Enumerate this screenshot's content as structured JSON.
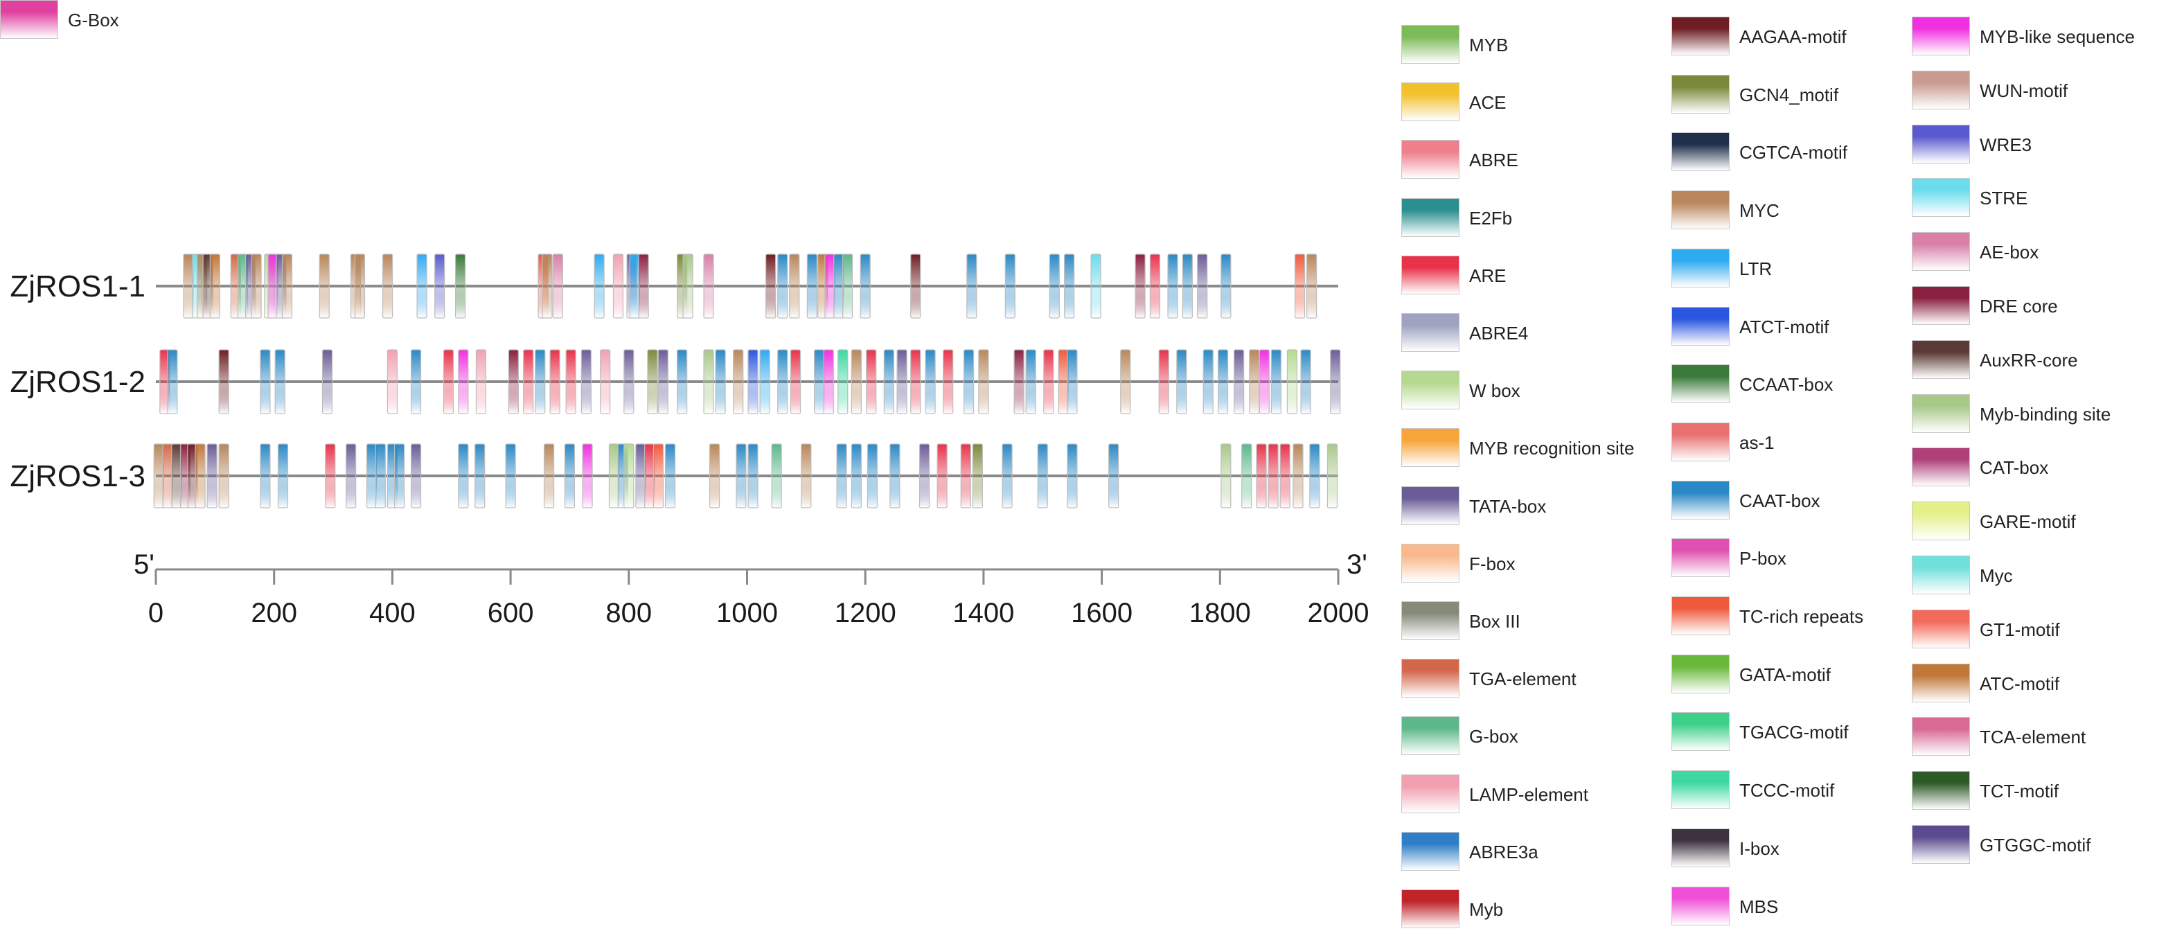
{
  "chart_data": {
    "type": "promoter-element-map",
    "axis": {
      "min": 0,
      "max": 2000,
      "ticks": [
        "0",
        "200",
        "400",
        "600",
        "800",
        "1000",
        "1200",
        "1400",
        "1600",
        "1800",
        "2000"
      ],
      "tick_values": [
        0,
        200,
        400,
        600,
        800,
        1000,
        1200,
        1400,
        1600,
        1800,
        2000
      ],
      "start_label": "5'",
      "end_label": "3'"
    },
    "genes": [
      {
        "name": "ZjROS1-1",
        "elements": [
          [
            55,
            "Myc"
          ],
          [
            70,
            "STRE"
          ],
          [
            78,
            "MYC"
          ],
          [
            88,
            "AuxRR-core"
          ],
          [
            100,
            "ATC-motif"
          ],
          [
            135,
            "TGA-element"
          ],
          [
            147,
            "G-box"
          ],
          [
            160,
            "TATA-box"
          ],
          [
            170,
            "MYC"
          ],
          [
            192,
            "W box"
          ],
          [
            198,
            "MYB-like sequence"
          ],
          [
            212,
            "TATA-box"
          ],
          [
            222,
            "MYC"
          ],
          [
            285,
            "MYC"
          ],
          [
            338,
            "MYC"
          ],
          [
            345,
            "MYC"
          ],
          [
            392,
            "MYC"
          ],
          [
            450,
            "LTR"
          ],
          [
            480,
            "WRE3"
          ],
          [
            515,
            "CCAAT-box"
          ],
          [
            655,
            "TC-rich repeats"
          ],
          [
            662,
            "MYC"
          ],
          [
            680,
            "AE-box"
          ],
          [
            750,
            "LTR"
          ],
          [
            782,
            "LAMP-element"
          ],
          [
            805,
            "TATA-box"
          ],
          [
            810,
            "LTR"
          ],
          [
            825,
            "DRE core"
          ],
          [
            890,
            "GCN4_motif"
          ],
          [
            900,
            "Myb-binding site"
          ],
          [
            935,
            "AE-box"
          ],
          [
            1040,
            "AAGAA-motif"
          ],
          [
            1060,
            "CAAT-box"
          ],
          [
            1080,
            "MYC"
          ],
          [
            1110,
            "CAAT-box"
          ],
          [
            1128,
            "ATC-motif"
          ],
          [
            1140,
            "MYB-like sequence"
          ],
          [
            1155,
            "CAAT-box"
          ],
          [
            1170,
            "G-box"
          ],
          [
            1200,
            "CAAT-box"
          ],
          [
            1285,
            "AAGAA-motif"
          ],
          [
            1380,
            "CAAT-box"
          ],
          [
            1445,
            "CAAT-box"
          ],
          [
            1520,
            "CAAT-box"
          ],
          [
            1545,
            "CAAT-box"
          ],
          [
            1590,
            "STRE"
          ],
          [
            1665,
            "DRE core"
          ],
          [
            1690,
            "ARE"
          ],
          [
            1720,
            "CAAT-box"
          ],
          [
            1745,
            "CAAT-box"
          ],
          [
            1770,
            "TATA-box"
          ],
          [
            1810,
            "CAAT-box"
          ],
          [
            1935,
            "TC-rich repeats"
          ],
          [
            1955,
            "Myc"
          ]
        ]
      },
      {
        "name": "ZjROS1-2",
        "elements": [
          [
            15,
            "ARE"
          ],
          [
            28,
            "CAAT-box"
          ],
          [
            115,
            "AAGAA-motif"
          ],
          [
            185,
            "CAAT-box"
          ],
          [
            210,
            "CAAT-box"
          ],
          [
            290,
            "TATA-box"
          ],
          [
            400,
            "LAMP-element"
          ],
          [
            440,
            "CAAT-box"
          ],
          [
            495,
            "ARE"
          ],
          [
            520,
            "MYB-like sequence"
          ],
          [
            550,
            "LAMP-element"
          ],
          [
            605,
            "DRE core"
          ],
          [
            630,
            "ARE"
          ],
          [
            650,
            "CAAT-box"
          ],
          [
            675,
            "ARE"
          ],
          [
            702,
            "ARE"
          ],
          [
            728,
            "TATA-box"
          ],
          [
            760,
            "LAMP-element"
          ],
          [
            800,
            "TATA-box"
          ],
          [
            840,
            "GCN4_motif"
          ],
          [
            858,
            "TATA-box"
          ],
          [
            890,
            "CAAT-box"
          ],
          [
            935,
            "Myb-binding site"
          ],
          [
            955,
            "CAAT-box"
          ],
          [
            985,
            "MYC"
          ],
          [
            1010,
            "ATCT-motif"
          ],
          [
            1030,
            "LTR"
          ],
          [
            1060,
            "CAAT-box"
          ],
          [
            1082,
            "ARE"
          ],
          [
            1122,
            "CAAT-box"
          ],
          [
            1138,
            "MYB-like sequence"
          ],
          [
            1162,
            "TCCC-motif"
          ],
          [
            1185,
            "Myc"
          ],
          [
            1210,
            "ARE"
          ],
          [
            1240,
            "CAAT-box"
          ],
          [
            1262,
            "TATA-box"
          ],
          [
            1285,
            "ARE"
          ],
          [
            1310,
            "CAAT-box"
          ],
          [
            1340,
            "ARE"
          ],
          [
            1375,
            "CAAT-box"
          ],
          [
            1400,
            "MYC"
          ],
          [
            1460,
            "DRE core"
          ],
          [
            1480,
            "CAAT-box"
          ],
          [
            1510,
            "ARE"
          ],
          [
            1535,
            "TC-rich repeats"
          ],
          [
            1550,
            "CAAT-box"
          ],
          [
            1640,
            "MYC"
          ],
          [
            1705,
            "ARE"
          ],
          [
            1735,
            "CAAT-box"
          ],
          [
            1780,
            "CAAT-box"
          ],
          [
            1805,
            "CAAT-box"
          ],
          [
            1832,
            "TATA-box"
          ],
          [
            1858,
            "Myc"
          ],
          [
            1875,
            "MYB-like sequence"
          ],
          [
            1895,
            "CAAT-box"
          ],
          [
            1922,
            "W box"
          ],
          [
            1945,
            "CAAT-box"
          ],
          [
            1995,
            "TATA-box"
          ]
        ]
      },
      {
        "name": "ZjROS1-3",
        "elements": [
          [
            5,
            "MYC"
          ],
          [
            20,
            "TGA-element"
          ],
          [
            35,
            "AuxRR-core"
          ],
          [
            50,
            "DRE core"
          ],
          [
            62,
            "AAGAA-motif"
          ],
          [
            75,
            "ATC-motif"
          ],
          [
            95,
            "TATA-box"
          ],
          [
            115,
            "Myc"
          ],
          [
            185,
            "CAAT-box"
          ],
          [
            215,
            "CAAT-box"
          ],
          [
            295,
            "ARE"
          ],
          [
            330,
            "TATA-box"
          ],
          [
            365,
            "CAAT-box"
          ],
          [
            380,
            "CAAT-box"
          ],
          [
            400,
            "CAAT-box"
          ],
          [
            412,
            "CAAT-box"
          ],
          [
            440,
            "TATA-box"
          ],
          [
            520,
            "CAAT-box"
          ],
          [
            548,
            "CAAT-box"
          ],
          [
            600,
            "CAAT-box"
          ],
          [
            665,
            "MYC"
          ],
          [
            700,
            "CAAT-box"
          ],
          [
            730,
            "MYB-like sequence"
          ],
          [
            775,
            "Myb-binding site"
          ],
          [
            790,
            "CAAT-box"
          ],
          [
            800,
            "W box"
          ],
          [
            820,
            "TATA-box"
          ],
          [
            835,
            "ARE"
          ],
          [
            850,
            "TC-rich repeats"
          ],
          [
            870,
            "CAAT-box"
          ],
          [
            945,
            "MYC"
          ],
          [
            990,
            "CAAT-box"
          ],
          [
            1010,
            "CAAT-box"
          ],
          [
            1050,
            "G-box"
          ],
          [
            1100,
            "MYC"
          ],
          [
            1160,
            "CAAT-box"
          ],
          [
            1185,
            "CAAT-box"
          ],
          [
            1212,
            "CAAT-box"
          ],
          [
            1250,
            "CAAT-box"
          ],
          [
            1300,
            "TATA-box"
          ],
          [
            1330,
            "ARE"
          ],
          [
            1370,
            "ARE"
          ],
          [
            1390,
            "GCN4_motif"
          ],
          [
            1440,
            "CAAT-box"
          ],
          [
            1500,
            "CAAT-box"
          ],
          [
            1550,
            "CAAT-box"
          ],
          [
            1620,
            "CAAT-box"
          ],
          [
            1810,
            "Myb-binding site"
          ],
          [
            1845,
            "G-box"
          ],
          [
            1870,
            "ARE"
          ],
          [
            1890,
            "ARE"
          ],
          [
            1910,
            "ARE"
          ],
          [
            1932,
            "MYC"
          ],
          [
            1960,
            "CAAT-box"
          ],
          [
            1990,
            "Myb-binding site"
          ]
        ]
      }
    ]
  },
  "legend": [
    {
      "label": "MYB",
      "color": "#7dbb5a"
    },
    {
      "label": "ACE",
      "color": "#f2c12e"
    },
    {
      "label": "ABRE",
      "color": "#ee7f8c"
    },
    {
      "label": "E2Fb",
      "color": "#2a8f8f"
    },
    {
      "label": "ARE",
      "color": "#e8324a"
    },
    {
      "label": "ABRE4",
      "color": "#9da3c0"
    },
    {
      "label": "W box",
      "color": "#b5d98f"
    },
    {
      "label": "MYB recognition site",
      "color": "#f7a43a"
    },
    {
      "label": "TATA-box",
      "color": "#6a5c96"
    },
    {
      "label": "F-box",
      "color": "#f9b98c"
    },
    {
      "label": "Box III",
      "color": "#868a7a"
    },
    {
      "label": "TGA-element",
      "color": "#d4674a"
    },
    {
      "label": "G-box",
      "color": "#5cb88a"
    },
    {
      "label": "LAMP-element",
      "color": "#f0a0b0"
    },
    {
      "label": "ABRE3a",
      "color": "#2f7ec8"
    },
    {
      "label": "Myb",
      "color": "#c0242a"
    },
    {
      "label": "AAGAA-motif",
      "color": "#6e1e22"
    },
    {
      "label": "GCN4_motif",
      "color": "#7a8a3a"
    },
    {
      "label": "CGTCA-motif",
      "color": "#1f2e4a"
    },
    {
      "label": "MYC",
      "color": "#b8865a"
    },
    {
      "label": "LTR",
      "color": "#2eaaf0"
    },
    {
      "label": "ATCT-motif",
      "color": "#2a56e0"
    },
    {
      "label": "CCAAT-box",
      "color": "#3a7a3a"
    },
    {
      "label": "as-1",
      "color": "#e87070"
    },
    {
      "label": "CAAT-box",
      "color": "#2a88c4"
    },
    {
      "label": "P-box",
      "color": "#e050b0"
    },
    {
      "label": "TC-rich repeats",
      "color": "#f05a3c"
    },
    {
      "label": "GATA-motif",
      "color": "#6ab83a"
    },
    {
      "label": "TGACG-motif",
      "color": "#3cd08a"
    },
    {
      "label": "TCCC-motif",
      "color": "#3cd8a0"
    },
    {
      "label": "I-box",
      "color": "#3c3240"
    },
    {
      "label": "MBS",
      "color": "#f050d8"
    },
    {
      "label": "MYB-like sequence",
      "color": "#f030e0"
    },
    {
      "label": "WUN-motif",
      "color": "#c89a90"
    },
    {
      "label": "WRE3",
      "color": "#5a5ad0"
    },
    {
      "label": "STRE",
      "color": "#6adcec"
    },
    {
      "label": "AE-box",
      "color": "#d880a8"
    },
    {
      "label": "DRE core",
      "color": "#8a2040"
    },
    {
      "label": "AuxRR-core",
      "color": "#5a3a34"
    },
    {
      "label": "Myb-binding site",
      "color": "#a8c888"
    },
    {
      "label": "CAT-box",
      "color": "#b0407a"
    },
    {
      "label": "GARE-motif",
      "color": "#e4f08a"
    },
    {
      "label": "Myc",
      "color": "#70e0dc"
    },
    {
      "label": "GT1-motif",
      "color": "#f26a5a"
    },
    {
      "label": "ATC-motif",
      "color": "#c0783a"
    },
    {
      "label": "TCA-element",
      "color": "#d86a94"
    },
    {
      "label": "TCT-motif",
      "color": "#2e5a28"
    },
    {
      "label": "GTGGC-motif",
      "color": "#5a4a90"
    },
    {
      "label": "G-Box",
      "color": "#e040a0"
    }
  ]
}
